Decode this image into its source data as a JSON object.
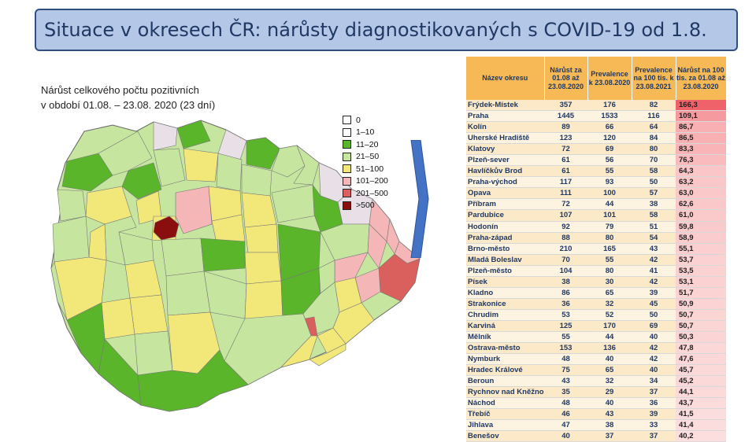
{
  "slide": {
    "title": "Situace v okresech ČR: nárůsty diagnostikovaných s COVID-19 od 1.8.",
    "map_caption_line1": "Nárůst celkového počtu pozitivních",
    "map_caption_line2": "v období 01.08. – 23.08. 2020 (23 dní)"
  },
  "legend": [
    {
      "label": "0",
      "color": "#ffffff"
    },
    {
      "label": "1–10",
      "color": "#ffffff"
    },
    {
      "label": "11–20",
      "color": "#5ab52a"
    },
    {
      "label": "21–50",
      "color": "#c6e6a0"
    },
    {
      "label": "51–100",
      "color": "#f2e87a"
    },
    {
      "label": "101–200",
      "color": "#f4b6b6"
    },
    {
      "label": "201–500",
      "color": "#d9605c"
    },
    {
      "label": ">500",
      "color": "#8b0e0e"
    }
  ],
  "table": {
    "headers": [
      "Název okresu",
      "Nárůst za 01.08 až 23.08.2020",
      "Prevalence k 23.08.2020",
      "Prevalence na 100 tis. k 23.08.2021",
      "Nárůst na 100 tis. za 01.08 až 23.08.2020"
    ],
    "rows": [
      [
        "Frýdek-Místek",
        "357",
        "176",
        "82",
        "166,3"
      ],
      [
        "Praha",
        "1445",
        "1533",
        "116",
        "109,1"
      ],
      [
        "Kolín",
        "89",
        "66",
        "64",
        "86,7"
      ],
      [
        "Uherské Hradiště",
        "123",
        "120",
        "84",
        "86,5"
      ],
      [
        "Klatovy",
        "72",
        "69",
        "80",
        "83,3"
      ],
      [
        "Plzeň-sever",
        "61",
        "56",
        "70",
        "76,3"
      ],
      [
        "Havlíčkův Brod",
        "61",
        "55",
        "58",
        "64,3"
      ],
      [
        "Praha-východ",
        "117",
        "93",
        "50",
        "63,2"
      ],
      [
        "Opava",
        "111",
        "100",
        "57",
        "63,0"
      ],
      [
        "Příbram",
        "72",
        "44",
        "38",
        "62,6"
      ],
      [
        "Pardubice",
        "107",
        "101",
        "58",
        "61,0"
      ],
      [
        "Hodonín",
        "92",
        "79",
        "51",
        "59,8"
      ],
      [
        "Praha-západ",
        "88",
        "80",
        "54",
        "58,9"
      ],
      [
        "Brno-město",
        "210",
        "165",
        "43",
        "55,1"
      ],
      [
        "Mladá Boleslav",
        "70",
        "55",
        "42",
        "53,7"
      ],
      [
        "Plzeň-město",
        "104",
        "80",
        "41",
        "53,5"
      ],
      [
        "Písek",
        "38",
        "30",
        "42",
        "53,1"
      ],
      [
        "Kladno",
        "86",
        "65",
        "39",
        "51,7"
      ],
      [
        "Strakonice",
        "36",
        "32",
        "45",
        "50,9"
      ],
      [
        "Chrudim",
        "53",
        "52",
        "50",
        "50,7"
      ],
      [
        "Karviná",
        "125",
        "170",
        "69",
        "50,7"
      ],
      [
        "Mělník",
        "55",
        "44",
        "40",
        "50,3"
      ],
      [
        "Ostrava-město",
        "153",
        "136",
        "42",
        "47,8"
      ],
      [
        "Nymburk",
        "48",
        "40",
        "42",
        "47,6"
      ],
      [
        "Hradec Králové",
        "75",
        "65",
        "40",
        "45,7"
      ],
      [
        "Beroun",
        "43",
        "32",
        "34",
        "45,2"
      ],
      [
        "Rychnov nad Kněžnou",
        "35",
        "29",
        "37",
        "44,1"
      ],
      [
        "Náchod",
        "48",
        "40",
        "36",
        "43,7"
      ],
      [
        "Třebíč",
        "46",
        "43",
        "39",
        "41,5"
      ],
      [
        "Jihlava",
        "47",
        "38",
        "33",
        "41,4"
      ],
      [
        "Benešov",
        "40",
        "37",
        "37",
        "40,2"
      ]
    ]
  },
  "colors": {
    "title_bg": "#b4c7e7",
    "title_text": "#1f3864",
    "header_bg": "#f7b955",
    "arrow": "#4472c4",
    "last_col_high": "#f0626a",
    "last_col_low": "#fcdede"
  }
}
